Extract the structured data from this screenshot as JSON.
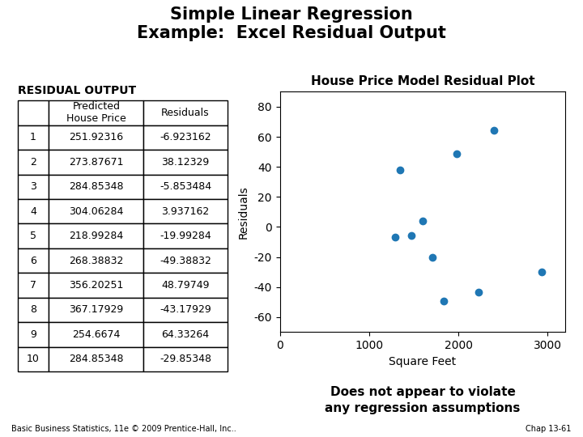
{
  "title": "Simple Linear Regression\nExample:  Excel Residual Output",
  "annotations": [
    "Basic Business Statistics, 11e © 2009 Prentice-Hall, Inc..",
    "Chap 13-61"
  ],
  "chart_data": [
    {
      "type": "table",
      "title": "RESIDUAL OUTPUT",
      "columns": [
        null,
        "Predicted\nHouse Price",
        "Residuals"
      ],
      "rows": [
        [
          1,
          251.92316,
          -6.923162
        ],
        [
          2,
          273.87671,
          38.12329
        ],
        [
          3,
          284.85348,
          -5.853484
        ],
        [
          4,
          304.06284,
          3.937162
        ],
        [
          5,
          218.99284,
          -19.99284
        ],
        [
          6,
          268.38832,
          -49.38832
        ],
        [
          7,
          356.20251,
          48.79749
        ],
        [
          8,
          367.17929,
          -43.17929
        ],
        [
          9,
          254.6674,
          64.33264
        ],
        [
          10,
          284.85348,
          -29.85348
        ]
      ]
    },
    {
      "type": "scatter",
      "title": "House Price Model Residual Plot",
      "x_label": "Square Feet",
      "y_label": "Residuals",
      "x": [
        1290,
        1350,
        1470,
        1600,
        1710,
        1840,
        1980,
        2230,
        2400,
        2930
      ],
      "values": [
        -6.923162,
        38.12329,
        -5.853484,
        3.937162,
        -19.99284,
        -49.38832,
        48.79749,
        -43.17929,
        64.33264,
        -29.85348
      ],
      "xlim": [
        0,
        3200
      ],
      "ylim": [
        -70,
        90
      ],
      "xticks": [
        0,
        1000,
        2000,
        3000
      ],
      "yticks": [
        -60,
        -40,
        -20,
        0,
        20,
        40,
        60,
        80
      ],
      "grid": false,
      "annotation": "Does not appear to violate\nany regression assumptions"
    }
  ]
}
